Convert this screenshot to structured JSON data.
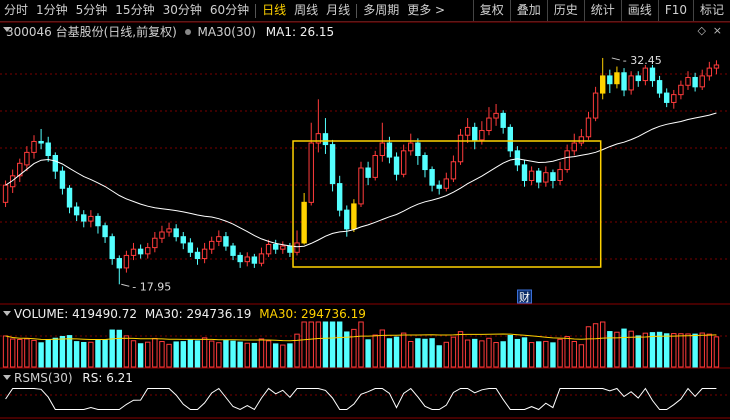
{
  "toolbar": {
    "periods": [
      "分时",
      "1分钟",
      "5分钟",
      "15分钟",
      "30分钟",
      "60分钟",
      "日线",
      "周线",
      "月线",
      "多周期",
      "更多 >"
    ],
    "active_index": 6,
    "right_buttons": [
      "复权",
      "叠加",
      "历史",
      "统计",
      "画线",
      "F10",
      "标记"
    ]
  },
  "main_info": {
    "title": "300046 台基股份(日线,前复权)",
    "ma_label": "MA30(30)",
    "ma_value": "MA1: 26.15"
  },
  "annotations": {
    "high_label": "32.45",
    "low_label": "17.95",
    "cai_marker": "财"
  },
  "volume_info": {
    "title": "VOLUME: 419490.72",
    "ma1": "MA30: 294736.19",
    "ma2": "MA30: 294736.19"
  },
  "rsms_info": {
    "title": "RSMS(30)",
    "value": "RS: 6.21"
  },
  "colors": {
    "up": "#ff3b3b",
    "down": "#54ffff",
    "highlight": "#ffd200",
    "ma": "#ffffff",
    "grid": "#7a0000"
  },
  "chart_data": {
    "type": "candlestick",
    "price_range": [
      17.95,
      32.45
    ],
    "candles": [
      {
        "o": 23.2,
        "c": 24.3,
        "h": 24.6,
        "l": 22.9
      },
      {
        "o": 24.2,
        "c": 24.9,
        "h": 25.3,
        "l": 23.8
      },
      {
        "o": 24.9,
        "c": 25.7,
        "h": 26.0,
        "l": 24.5
      },
      {
        "o": 25.6,
        "c": 26.4,
        "h": 26.8,
        "l": 25.2
      },
      {
        "o": 26.4,
        "c": 27.1,
        "h": 27.5,
        "l": 26.0
      },
      {
        "o": 27.1,
        "c": 27.0,
        "h": 27.9,
        "l": 26.6
      },
      {
        "o": 27.0,
        "c": 26.2,
        "h": 27.4,
        "l": 25.8
      },
      {
        "o": 26.2,
        "c": 25.2,
        "h": 26.4,
        "l": 24.7
      },
      {
        "o": 25.2,
        "c": 24.1,
        "h": 25.5,
        "l": 23.7
      },
      {
        "o": 24.1,
        "c": 22.9,
        "h": 24.3,
        "l": 22.5
      },
      {
        "o": 22.9,
        "c": 22.4,
        "h": 23.2,
        "l": 22.0
      },
      {
        "o": 22.4,
        "c": 22.0,
        "h": 22.7,
        "l": 21.6
      },
      {
        "o": 22.0,
        "c": 22.3,
        "h": 22.7,
        "l": 21.6
      },
      {
        "o": 22.3,
        "c": 21.7,
        "h": 22.5,
        "l": 21.2
      },
      {
        "o": 21.7,
        "c": 21.0,
        "h": 21.9,
        "l": 20.6
      },
      {
        "o": 21.0,
        "c": 19.6,
        "h": 21.2,
        "l": 19.2
      },
      {
        "o": 19.6,
        "c": 19.0,
        "h": 19.8,
        "l": 17.95
      },
      {
        "o": 19.0,
        "c": 19.8,
        "h": 20.1,
        "l": 18.7
      },
      {
        "o": 19.8,
        "c": 20.2,
        "h": 20.6,
        "l": 19.5
      },
      {
        "o": 20.2,
        "c": 19.9,
        "h": 20.5,
        "l": 19.6
      },
      {
        "o": 19.9,
        "c": 20.3,
        "h": 20.6,
        "l": 19.6
      },
      {
        "o": 20.3,
        "c": 20.9,
        "h": 21.3,
        "l": 20.0
      },
      {
        "o": 20.9,
        "c": 21.3,
        "h": 21.7,
        "l": 20.6
      },
      {
        "o": 21.3,
        "c": 21.5,
        "h": 21.9,
        "l": 21.0
      },
      {
        "o": 21.5,
        "c": 21.0,
        "h": 21.8,
        "l": 20.7
      },
      {
        "o": 21.0,
        "c": 20.6,
        "h": 21.3,
        "l": 20.2
      },
      {
        "o": 20.6,
        "c": 20.0,
        "h": 20.9,
        "l": 19.7
      },
      {
        "o": 20.0,
        "c": 19.6,
        "h": 20.3,
        "l": 19.2
      },
      {
        "o": 19.6,
        "c": 20.2,
        "h": 20.6,
        "l": 19.3
      },
      {
        "o": 20.2,
        "c": 20.7,
        "h": 21.0,
        "l": 19.9
      },
      {
        "o": 20.7,
        "c": 21.0,
        "h": 21.4,
        "l": 20.4
      },
      {
        "o": 21.0,
        "c": 20.4,
        "h": 21.3,
        "l": 20.1
      },
      {
        "o": 20.4,
        "c": 19.8,
        "h": 20.6,
        "l": 19.5
      },
      {
        "o": 19.8,
        "c": 19.4,
        "h": 20.0,
        "l": 19.0
      },
      {
        "o": 19.4,
        "c": 19.7,
        "h": 20.0,
        "l": 19.1
      },
      {
        "o": 19.7,
        "c": 19.3,
        "h": 19.9,
        "l": 19.0
      },
      {
        "o": 19.3,
        "c": 19.9,
        "h": 20.3,
        "l": 19.1
      },
      {
        "o": 19.9,
        "c": 20.5,
        "h": 20.8,
        "l": 19.7
      },
      {
        "o": 20.5,
        "c": 20.2,
        "h": 20.8,
        "l": 19.9
      },
      {
        "o": 20.2,
        "c": 20.4,
        "h": 20.7,
        "l": 19.9
      },
      {
        "o": 20.4,
        "c": 20.0,
        "h": 20.6,
        "l": 19.7
      },
      {
        "o": 20.0,
        "c": 20.6,
        "h": 21.4,
        "l": 19.8
      },
      {
        "o": 20.6,
        "c": 23.2,
        "h": 23.8,
        "l": 20.5
      },
      {
        "o": 23.2,
        "c": 27.0,
        "h": 28.3,
        "l": 23.0
      },
      {
        "o": 27.0,
        "c": 27.6,
        "h": 29.8,
        "l": 26.4
      },
      {
        "o": 27.6,
        "c": 26.9,
        "h": 28.6,
        "l": 26.3
      },
      {
        "o": 26.9,
        "c": 24.4,
        "h": 27.2,
        "l": 23.9
      },
      {
        "o": 24.4,
        "c": 22.7,
        "h": 24.9,
        "l": 22.3
      },
      {
        "o": 22.7,
        "c": 21.5,
        "h": 23.0,
        "l": 21.0
      },
      {
        "o": 21.5,
        "c": 23.1,
        "h": 23.4,
        "l": 21.3
      },
      {
        "o": 23.1,
        "c": 25.4,
        "h": 25.8,
        "l": 22.9
      },
      {
        "o": 25.4,
        "c": 24.8,
        "h": 25.8,
        "l": 24.3
      },
      {
        "o": 24.8,
        "c": 26.2,
        "h": 26.5,
        "l": 24.6
      },
      {
        "o": 26.2,
        "c": 27.0,
        "h": 28.3,
        "l": 25.8
      },
      {
        "o": 27.0,
        "c": 26.1,
        "h": 27.4,
        "l": 25.7
      },
      {
        "o": 26.1,
        "c": 25.0,
        "h": 26.4,
        "l": 24.6
      },
      {
        "o": 25.0,
        "c": 26.5,
        "h": 26.9,
        "l": 24.8
      },
      {
        "o": 26.5,
        "c": 27.0,
        "h": 27.6,
        "l": 26.2
      },
      {
        "o": 27.0,
        "c": 26.2,
        "h": 27.3,
        "l": 25.6
      },
      {
        "o": 26.2,
        "c": 25.3,
        "h": 26.4,
        "l": 24.8
      },
      {
        "o": 25.3,
        "c": 24.3,
        "h": 25.5,
        "l": 23.9
      },
      {
        "o": 24.3,
        "c": 24.1,
        "h": 24.6,
        "l": 23.7
      },
      {
        "o": 24.1,
        "c": 24.7,
        "h": 25.1,
        "l": 23.9
      },
      {
        "o": 24.7,
        "c": 25.8,
        "h": 26.2,
        "l": 24.5
      },
      {
        "o": 25.8,
        "c": 27.5,
        "h": 27.9,
        "l": 25.6
      },
      {
        "o": 27.5,
        "c": 28.0,
        "h": 28.6,
        "l": 27.0
      },
      {
        "o": 28.0,
        "c": 27.2,
        "h": 28.3,
        "l": 26.6
      },
      {
        "o": 27.2,
        "c": 27.8,
        "h": 28.4,
        "l": 26.9
      },
      {
        "o": 27.8,
        "c": 28.6,
        "h": 29.3,
        "l": 27.5
      },
      {
        "o": 28.6,
        "c": 28.9,
        "h": 29.5,
        "l": 28.1
      },
      {
        "o": 28.9,
        "c": 28.0,
        "h": 29.1,
        "l": 27.6
      },
      {
        "o": 28.0,
        "c": 26.5,
        "h": 28.2,
        "l": 26.1
      },
      {
        "o": 26.5,
        "c": 25.6,
        "h": 26.8,
        "l": 25.2
      },
      {
        "o": 25.6,
        "c": 24.6,
        "h": 25.9,
        "l": 24.2
      },
      {
        "o": 24.6,
        "c": 25.2,
        "h": 25.5,
        "l": 24.3
      },
      {
        "o": 25.2,
        "c": 24.5,
        "h": 25.4,
        "l": 24.1
      },
      {
        "o": 24.5,
        "c": 25.1,
        "h": 25.5,
        "l": 24.2
      },
      {
        "o": 25.1,
        "c": 24.6,
        "h": 25.3,
        "l": 24.1
      },
      {
        "o": 24.6,
        "c": 25.3,
        "h": 25.8,
        "l": 24.3
      },
      {
        "o": 25.3,
        "c": 26.5,
        "h": 26.9,
        "l": 25.1
      },
      {
        "o": 26.5,
        "c": 27.0,
        "h": 27.6,
        "l": 26.2
      },
      {
        "o": 27.0,
        "c": 27.4,
        "h": 27.9,
        "l": 26.8
      },
      {
        "o": 27.4,
        "c": 28.6,
        "h": 29.0,
        "l": 27.2
      },
      {
        "o": 28.6,
        "c": 30.2,
        "h": 30.6,
        "l": 28.4
      },
      {
        "o": 30.2,
        "c": 31.3,
        "h": 32.45,
        "l": 29.8
      },
      {
        "o": 31.3,
        "c": 30.8,
        "h": 31.7,
        "l": 30.2
      },
      {
        "o": 30.8,
        "c": 31.5,
        "h": 31.9,
        "l": 30.5
      },
      {
        "o": 31.5,
        "c": 30.4,
        "h": 31.8,
        "l": 30.0
      },
      {
        "o": 30.4,
        "c": 31.3,
        "h": 31.6,
        "l": 30.1
      },
      {
        "o": 31.3,
        "c": 31.0,
        "h": 31.6,
        "l": 30.6
      },
      {
        "o": 31.0,
        "c": 31.8,
        "h": 32.0,
        "l": 30.7
      },
      {
        "o": 31.8,
        "c": 31.0,
        "h": 32.0,
        "l": 30.6
      },
      {
        "o": 31.0,
        "c": 30.2,
        "h": 31.3,
        "l": 29.9
      },
      {
        "o": 30.2,
        "c": 29.6,
        "h": 30.5,
        "l": 29.3
      },
      {
        "o": 29.6,
        "c": 30.1,
        "h": 30.4,
        "l": 29.2
      },
      {
        "o": 30.1,
        "c": 30.7,
        "h": 31.0,
        "l": 29.8
      },
      {
        "o": 30.7,
        "c": 31.2,
        "h": 31.6,
        "l": 30.4
      },
      {
        "o": 31.2,
        "c": 30.6,
        "h": 31.5,
        "l": 30.3
      },
      {
        "o": 30.6,
        "c": 31.3,
        "h": 31.7,
        "l": 30.4
      },
      {
        "o": 31.3,
        "c": 31.8,
        "h": 32.2,
        "l": 31.0
      },
      {
        "o": 31.8,
        "c": 32.0,
        "h": 32.3,
        "l": 31.4
      }
    ]
  }
}
